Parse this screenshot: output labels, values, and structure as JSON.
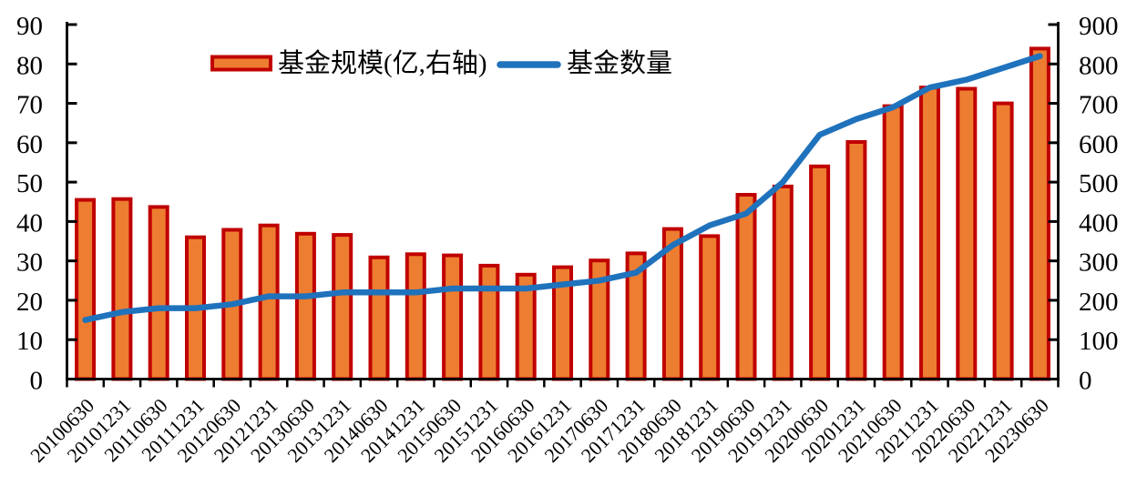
{
  "page": {
    "background": "#FFFFFF"
  },
  "chart_data": {
    "type": "combo",
    "title": "",
    "categories": [
      "20100630",
      "20101231",
      "20110630",
      "20111231",
      "20120630",
      "20121231",
      "20130630",
      "20131231",
      "20140630",
      "20141231",
      "20150630",
      "20151231",
      "20160630",
      "20161231",
      "20170630",
      "20171231",
      "20180630",
      "20181231",
      "20190630",
      "20191231",
      "20200630",
      "20201231",
      "20210630",
      "20211231",
      "20220630",
      "20221231",
      "20230630"
    ],
    "series": [
      {
        "name": "基金规模(亿,右轴)",
        "type": "bar",
        "axis": "right",
        "color": "#ED7D31",
        "border_color": "#C00000",
        "values": [
          455,
          457,
          437,
          360,
          379,
          390,
          369,
          366,
          309,
          317,
          314,
          288,
          265,
          284,
          301,
          319,
          381,
          363,
          468,
          489,
          540,
          602,
          693,
          740,
          737,
          700,
          839
        ]
      },
      {
        "name": "基金数量",
        "type": "line",
        "axis": "left",
        "color": "#1F72BC",
        "values": [
          15,
          17,
          18,
          18,
          19,
          21,
          21,
          22,
          22,
          22,
          23,
          23,
          23,
          24,
          25,
          27,
          34,
          39,
          42,
          50,
          62,
          66,
          69,
          74,
          76,
          79,
          82
        ]
      }
    ],
    "left_axis": {
      "min": 0,
      "max": 90,
      "step": 10,
      "ticks": [
        0,
        10,
        20,
        30,
        40,
        50,
        60,
        70,
        80,
        90
      ]
    },
    "right_axis": {
      "min": 0,
      "max": 900,
      "step": 100,
      "ticks": [
        0,
        100,
        200,
        300,
        400,
        500,
        600,
        700,
        800,
        900
      ]
    },
    "grid": false,
    "legend_position": "top-center",
    "axis_color": "#000000",
    "text_color": "#000000"
  }
}
